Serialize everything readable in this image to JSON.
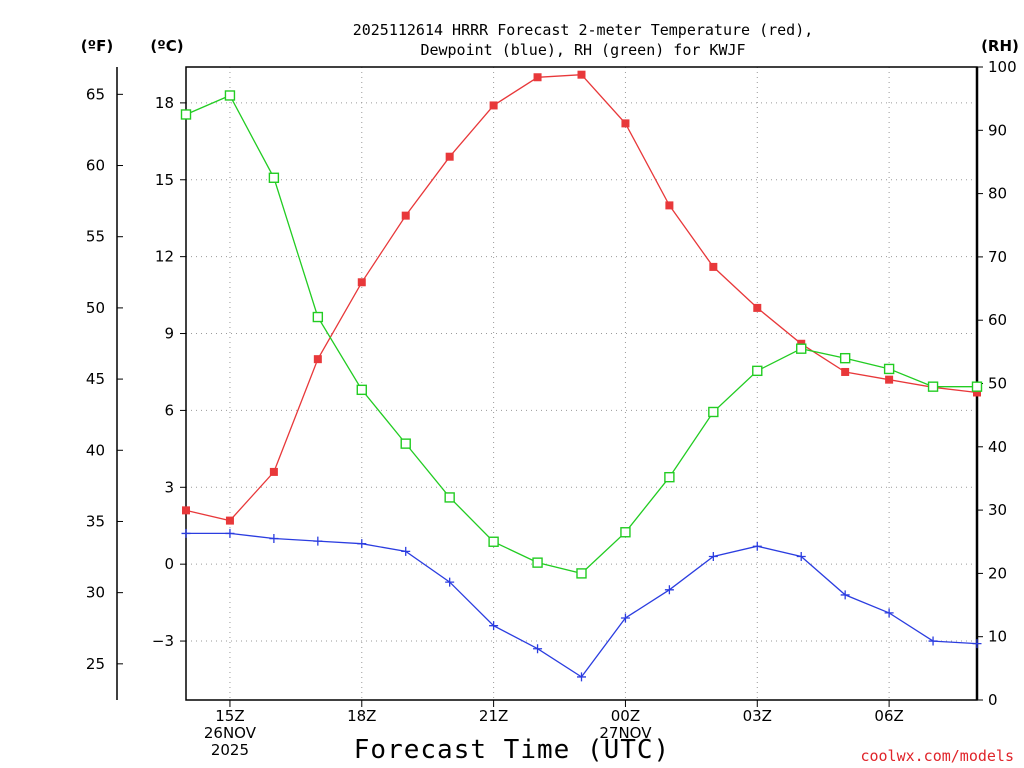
{
  "chart_data": {
    "type": "line",
    "title_line1": "2025112614 HRRR Forecast 2-meter Temperature (red),",
    "title_line2": "Dewpoint (blue), RH (green) for KWJF",
    "xlabel": "Forecast Time (UTC)",
    "credit": "coolwx.com/models",
    "left_unit_f": "(ºF)",
    "left_unit_c": "(ºC)",
    "right_unit": "(RH)",
    "x_hours": [
      14,
      15,
      16,
      17,
      18,
      19,
      20,
      21,
      22,
      23,
      24,
      25,
      26,
      27,
      28,
      29,
      30,
      31,
      32
    ],
    "x_ticks": [
      {
        "hour": 15,
        "lines": [
          "15Z",
          "26NOV",
          "2025"
        ]
      },
      {
        "hour": 18,
        "lines": [
          "18Z"
        ]
      },
      {
        "hour": 21,
        "lines": [
          "21Z"
        ]
      },
      {
        "hour": 24,
        "lines": [
          "00Z",
          "27NOV"
        ]
      },
      {
        "hour": 27,
        "lines": [
          "03Z"
        ]
      },
      {
        "hour": 30,
        "lines": [
          "06Z"
        ]
      }
    ],
    "xlim": [
      14,
      32
    ],
    "ylim_c": [
      -5.3,
      19.4
    ],
    "yticks_c": [
      -3,
      0,
      3,
      6,
      9,
      12,
      15,
      18
    ],
    "yticks_f": [
      25,
      30,
      35,
      40,
      45,
      50,
      55,
      60,
      65
    ],
    "ylim_rh": [
      0,
      100
    ],
    "yticks_rh": [
      0,
      10,
      20,
      30,
      40,
      50,
      60,
      70,
      80,
      90,
      100
    ],
    "series": [
      {
        "name": "Temperature",
        "units": "C",
        "color": "#e8383a",
        "marker": "filled-square",
        "values": [
          2.1,
          1.7,
          3.6,
          8.0,
          11.0,
          13.6,
          15.9,
          17.9,
          19.0,
          19.1,
          17.2,
          14.0,
          11.6,
          10.0,
          8.6,
          7.5,
          7.2,
          6.9,
          6.7
        ]
      },
      {
        "name": "Dewpoint",
        "units": "C",
        "color": "#2b3de0",
        "marker": "plus",
        "values": [
          1.2,
          1.2,
          1.0,
          0.9,
          0.8,
          0.5,
          -0.7,
          -2.4,
          -3.3,
          -4.4,
          -2.1,
          -1.0,
          0.3,
          0.7,
          0.3,
          -1.2,
          -1.9,
          -3.0,
          -3.1
        ]
      },
      {
        "name": "RH",
        "units": "%",
        "color": "#22cc22",
        "marker": "open-square",
        "values": [
          92.5,
          95.5,
          82.5,
          60.5,
          49.0,
          40.5,
          32.0,
          25.0,
          21.7,
          20.0,
          26.5,
          35.2,
          45.5,
          52.0,
          55.5,
          54.0,
          52.3,
          49.5,
          49.5
        ]
      }
    ]
  }
}
